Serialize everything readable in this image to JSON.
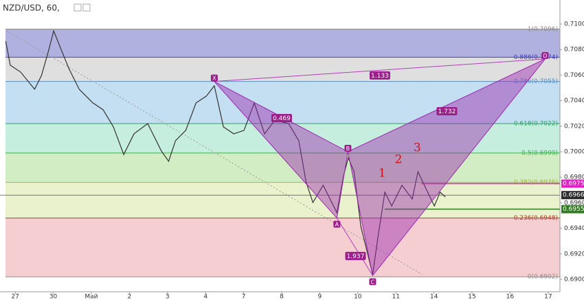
{
  "chart_data": {
    "type": "line",
    "title": "NZD/USD, 60,",
    "xlim": [
      -0.4,
      14.31
    ],
    "ylim": [
      0.68903,
      0.71188
    ],
    "xticks": [
      {
        "value": 0,
        "label": "27"
      },
      {
        "value": 1,
        "label": "30"
      },
      {
        "value": 2,
        "label": "Май"
      },
      {
        "value": 3,
        "label": "2"
      },
      {
        "value": 4,
        "label": "3"
      },
      {
        "value": 5,
        "label": "4"
      },
      {
        "value": 6,
        "label": "7"
      },
      {
        "value": 7,
        "label": "8"
      },
      {
        "value": 8,
        "label": "9"
      },
      {
        "value": 9,
        "label": "10"
      },
      {
        "value": 10,
        "label": "11"
      },
      {
        "value": 11,
        "label": "14"
      },
      {
        "value": 12,
        "label": "15"
      },
      {
        "value": 13,
        "label": "16"
      },
      {
        "value": 14,
        "label": "17"
      }
    ],
    "yticks": [
      {
        "value": 0.71,
        "label": "0.7100"
      },
      {
        "value": 0.708,
        "label": "0.7080"
      },
      {
        "value": 0.706,
        "label": "0.7060"
      },
      {
        "value": 0.704,
        "label": "0.7040"
      },
      {
        "value": 0.702,
        "label": "0.7020"
      },
      {
        "value": 0.7,
        "label": "0.7000"
      },
      {
        "value": 0.698,
        "label": "0.6980"
      },
      {
        "value": 0.696,
        "label": "0.6960"
      },
      {
        "value": 0.694,
        "label": "0.6940"
      },
      {
        "value": 0.692,
        "label": "0.6920"
      },
      {
        "value": 0.69,
        "label": "0.6900"
      }
    ],
    "series": [
      {
        "name": "NZD/USD",
        "color": "#333333",
        "x": [
          -0.25,
          -0.13,
          0.14,
          0.51,
          0.69,
          0.87,
          1.01,
          1.19,
          1.41,
          1.68,
          2.04,
          2.31,
          2.58,
          2.85,
          3.12,
          3.48,
          3.84,
          4.03,
          4.21,
          4.48,
          4.75,
          5.02,
          5.23,
          5.47,
          5.74,
          6.01,
          6.28,
          6.55,
          6.82,
          7.18,
          7.45,
          7.64,
          7.82,
          8.09,
          8.45,
          8.63,
          8.75,
          8.9,
          9.08,
          9.26,
          9.39,
          9.53,
          9.71,
          9.89,
          10.16,
          10.43,
          10.58,
          10.79,
          11.01,
          11.16,
          11.3
        ],
        "values": [
          0.70866,
          0.70677,
          0.70624,
          0.70489,
          0.70597,
          0.70785,
          0.70946,
          0.70812,
          0.70651,
          0.70489,
          0.70382,
          0.70328,
          0.70194,
          0.69978,
          0.7014,
          0.7022,
          0.70005,
          0.69925,
          0.70086,
          0.70167,
          0.70382,
          0.70435,
          0.70516,
          0.70194,
          0.7014,
          0.70167,
          0.70382,
          0.7014,
          0.70247,
          0.7022,
          0.70086,
          0.69763,
          0.69602,
          0.69737,
          0.69522,
          0.69817,
          0.69952,
          0.69844,
          0.69414,
          0.69199,
          0.69038,
          0.69333,
          0.69683,
          0.69575,
          0.69737,
          0.69629,
          0.69844,
          0.6971,
          0.69575,
          0.69683,
          0.69645
        ]
      }
    ],
    "fib_levels": [
      {
        "label": "1(0.7096)",
        "value": 0.7096,
        "color": "#8a8a8a",
        "fill": "#a9a9dc"
      },
      {
        "label": "0.886(0.7074)",
        "value": 0.7074,
        "color": "#3b3bc4",
        "fill": "#dcdcdc"
      },
      {
        "label": "0.786(0.7055)",
        "value": 0.7055,
        "color": "#5a8fc0",
        "fill": "#bedcef"
      },
      {
        "label": "0.618(0.7022)",
        "value": 0.7022,
        "color": "#2fa06a",
        "fill": "#c0ecdc"
      },
      {
        "label": "0.5(0.6999)",
        "value": 0.6999,
        "color": "#3cb04a",
        "fill": "#cdebbd"
      },
      {
        "label": "0.382(0.6976)",
        "value": 0.6976,
        "color": "#a2b83a",
        "fill": "#e7f1c6"
      },
      {
        "label": "0.236(0.6948)",
        "value": 0.6948,
        "color": "#c0392b",
        "fill": "#f3c9cc"
      },
      {
        "label": "0(0.6902)",
        "value": 0.6902,
        "color": "#8a8a8a"
      }
    ],
    "pattern_points": [
      {
        "label": "X",
        "x": 5.23,
        "value": 0.7055
      },
      {
        "label": "A",
        "x": 8.45,
        "value": 0.6948
      },
      {
        "label": "B",
        "x": 8.74,
        "value": 0.7
      },
      {
        "label": "C",
        "x": 9.39,
        "value": 0.6903
      },
      {
        "label": "D",
        "x": 13.92,
        "value": 0.70726
      }
    ],
    "ratios": [
      {
        "label": "0.469",
        "x": 7.0,
        "value": 0.70263
      },
      {
        "label": "1.133",
        "x": 9.58,
        "value": 0.70597
      },
      {
        "label": "1.732",
        "x": 11.34,
        "value": 0.70317
      },
      {
        "label": "1.937",
        "x": 8.94,
        "value": 0.69183
      }
    ],
    "price_marks": [
      {
        "value": 0.6975,
        "color": "#e020c0"
      },
      {
        "value": 0.6966,
        "color": "#2b2b2b"
      },
      {
        "value": 0.6955,
        "color": "#2e7d1e"
      }
    ],
    "annotations": [
      {
        "label": "1",
        "x": 9.64,
        "value": 0.69828
      },
      {
        "label": "2",
        "x": 10.07,
        "value": 0.69935
      },
      {
        "label": "3",
        "x": 10.56,
        "value": 0.70027
      }
    ]
  }
}
